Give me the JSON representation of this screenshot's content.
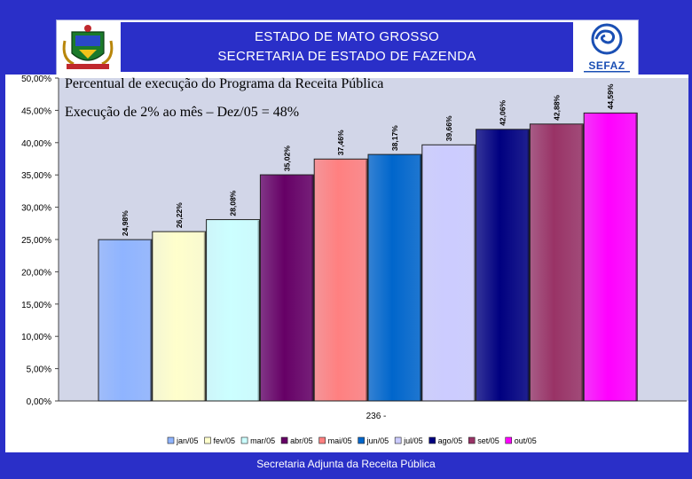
{
  "header": {
    "line1": "ESTADO DE MATO GROSSO",
    "line2": "SECRETARIA DE ESTADO DE FAZENDA",
    "logo_text": "SEFAZ"
  },
  "footer": {
    "text": "Secretaria Adjunta da Receita Pública"
  },
  "colors": {
    "background": "#2a2fc8",
    "plot_area": "#d2d6e8",
    "footer_text": "#ffffff"
  },
  "chart_data": {
    "type": "bar",
    "title": "Percentual de execução do Programa da Receita Pública",
    "subtitle": "Execução de 2% ao mês – Dez/05 = 48%",
    "xlabel": "236 -",
    "ylabel": "",
    "ylim": [
      0,
      50
    ],
    "yticks": [
      "0,00%",
      "5,00%",
      "10,00%",
      "15,00%",
      "20,00%",
      "25,00%",
      "30,00%",
      "35,00%",
      "40,00%",
      "45,00%",
      "50,00%"
    ],
    "grid": false,
    "legend_position": "bottom",
    "categories": [
      "jan/05",
      "fev/05",
      "mar/05",
      "abr/05",
      "mai/05",
      "jun/05",
      "jul/05",
      "ago/05",
      "set/05",
      "out/05"
    ],
    "values": [
      24.98,
      26.22,
      28.08,
      35.02,
      37.46,
      38.17,
      39.66,
      42.06,
      42.88,
      44.59
    ],
    "data_labels": [
      "24,98%",
      "26,22%",
      "28,08%",
      "35,02%",
      "37,46%",
      "38,17%",
      "39,66%",
      "42,06%",
      "42,88%",
      "44,59%"
    ],
    "colors": [
      "#8fb4ff",
      "#ffffcc",
      "#ccffff",
      "#660066",
      "#ff8080",
      "#0066cc",
      "#ccccff",
      "#000080",
      "#993366",
      "#ff00ff"
    ]
  }
}
